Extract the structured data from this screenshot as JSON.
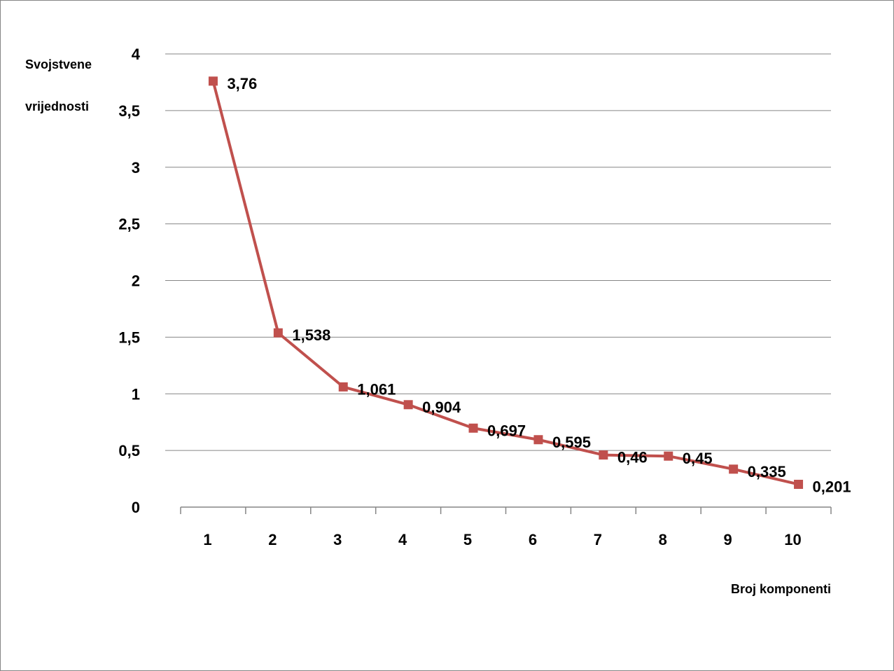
{
  "chart_data": {
    "type": "line",
    "title": "",
    "ylabel_lines": [
      "Svojstvene",
      "vrijednosti"
    ],
    "xlabel": "Broj komponenti",
    "categories": [
      "1",
      "2",
      "3",
      "4",
      "5",
      "6",
      "7",
      "8",
      "9",
      "10"
    ],
    "values": [
      3.76,
      1.538,
      1.061,
      0.904,
      0.697,
      0.595,
      0.46,
      0.45,
      0.335,
      0.201
    ],
    "data_labels": [
      "3,76",
      "1,538",
      "1,061",
      "0,904",
      "0,697",
      "0,595",
      "0,46",
      "0,45",
      "0,335",
      "0,201"
    ],
    "ylim": [
      0,
      4
    ],
    "yticks": [
      0,
      0.5,
      1,
      1.5,
      2,
      2.5,
      3,
      3.5,
      4
    ],
    "ytick_labels": [
      "0",
      "0,5",
      "1",
      "1,5",
      "2",
      "2,5",
      "3",
      "3,5",
      "4"
    ],
    "grid": true,
    "legend": "none",
    "series_color": "#C0504D",
    "grid_color": "#868686"
  }
}
